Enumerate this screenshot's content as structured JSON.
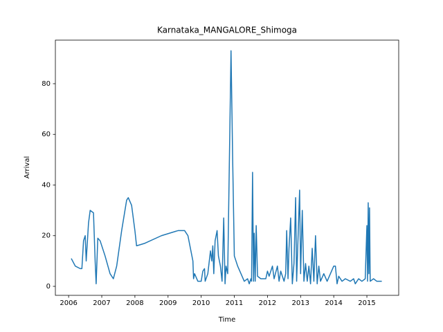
{
  "chart_data": {
    "type": "line",
    "title": "Karnataka_MANGALORE_Shimoga",
    "xlabel": "Time",
    "ylabel": "Arrival",
    "color": "#1f77b4",
    "x": [
      2006.08,
      2006.2,
      2006.35,
      2006.4,
      2006.45,
      2006.5,
      2006.53,
      2006.6,
      2006.65,
      2006.75,
      2006.8,
      2006.83,
      2006.88,
      2006.95,
      2007.1,
      2007.25,
      2007.35,
      2007.45,
      2007.6,
      2007.75,
      2007.8,
      2007.9,
      2008.0,
      2008.05,
      2008.3,
      2008.8,
      2009.3,
      2009.5,
      2009.6,
      2009.75,
      2009.77,
      2009.8,
      2009.9,
      2010.0,
      2010.05,
      2010.1,
      2010.12,
      2010.2,
      2010.28,
      2010.32,
      2010.35,
      2010.38,
      2010.42,
      2010.48,
      2010.52,
      2010.58,
      2010.63,
      2010.68,
      2010.72,
      2010.75,
      2010.8,
      2010.9,
      2010.95,
      2011.0,
      2011.1,
      2011.2,
      2011.3,
      2011.4,
      2011.45,
      2011.5,
      2011.52,
      2011.55,
      2011.58,
      2011.6,
      2011.63,
      2011.66,
      2011.7,
      2011.8,
      2011.95,
      2012.0,
      2012.05,
      2012.15,
      2012.2,
      2012.3,
      2012.35,
      2012.4,
      2012.5,
      2012.55,
      2012.58,
      2012.62,
      2012.65,
      2012.7,
      2012.75,
      2012.8,
      2012.85,
      2012.88,
      2012.92,
      2012.97,
      2013.0,
      2013.05,
      2013.1,
      2013.15,
      2013.2,
      2013.25,
      2013.3,
      2013.35,
      2013.4,
      2013.45,
      2013.5,
      2013.55,
      2013.6,
      2013.7,
      2013.8,
      2013.9,
      2014.0,
      2014.05,
      2014.1,
      2014.15,
      2014.25,
      2014.35,
      2014.5,
      2014.6,
      2014.65,
      2014.75,
      2014.85,
      2014.95,
      2015.0,
      2015.02,
      2015.04,
      2015.06,
      2015.08,
      2015.1,
      2015.2,
      2015.3,
      2015.45
    ],
    "values": [
      11,
      8,
      7,
      7,
      18,
      20,
      10,
      25,
      30,
      29,
      10,
      1,
      19,
      18,
      12,
      5,
      3,
      8,
      22,
      34,
      35,
      32,
      22,
      16,
      17,
      20,
      22,
      22,
      20,
      10,
      3,
      5,
      2,
      2,
      6,
      7,
      2,
      5,
      14,
      10,
      16,
      5,
      18,
      22,
      12,
      8,
      2,
      27,
      1,
      8,
      5,
      93,
      50,
      12,
      8,
      5,
      2,
      3,
      1,
      3,
      2,
      45,
      2,
      21,
      2,
      24,
      4,
      3,
      3,
      6,
      4,
      8,
      3,
      8,
      2,
      6,
      2,
      5,
      22,
      3,
      15,
      27,
      1,
      9,
      35,
      2,
      18,
      38,
      5,
      30,
      2,
      9,
      2,
      8,
      1,
      15,
      2,
      20,
      1,
      8,
      2,
      5,
      2,
      5,
      8,
      8,
      1,
      4,
      2,
      3,
      2,
      3,
      1,
      3,
      2,
      3,
      24,
      2,
      33,
      5,
      31,
      2,
      3,
      2,
      2
    ],
    "xlim": [
      2005.6,
      2015.96
    ],
    "ylim": [
      -3.55,
      97.2
    ],
    "xticks": [
      2006,
      2007,
      2008,
      2009,
      2010,
      2011,
      2012,
      2013,
      2014,
      2015
    ],
    "yticks": [
      0,
      20,
      40,
      60,
      80
    ]
  }
}
